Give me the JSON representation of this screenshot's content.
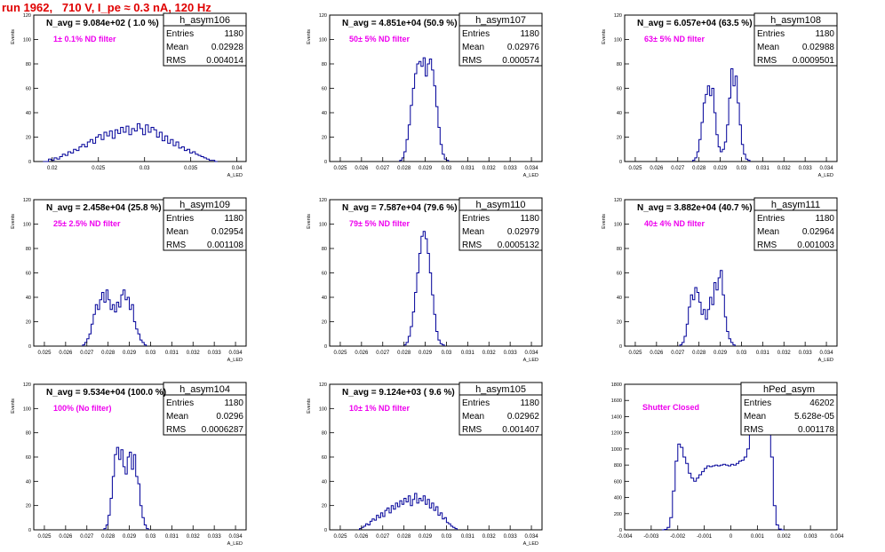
{
  "page_title": "run 1962,   710 V, I_pe ≈ 0.3 nA, 120 Hz",
  "colors": {
    "histogram": "#000099",
    "title_text": "#e00000",
    "annotation": "#ee00ee",
    "axis": "#000000"
  },
  "chart_data": [
    {
      "type": "histogram",
      "name": "h_asym106",
      "navg": "N_avg = 9.084e+02 ( 1.0 %)",
      "annotation": "1± 0.1% ND filter",
      "stats": {
        "entries": "1180",
        "mean": "0.02928",
        "rms": "0.004014"
      },
      "ylabel": "Events",
      "xlabel": "A_LED",
      "xlim": [
        0.018,
        0.041
      ],
      "ylim": [
        0,
        120
      ],
      "xticks": [
        0.02,
        0.025,
        0.03,
        0.035,
        0.04
      ],
      "xticklabels": [
        "0.02",
        "0.025",
        "0.03",
        "0.035",
        "0.04"
      ],
      "yticks": [
        0,
        20,
        40,
        60,
        80,
        100,
        120
      ],
      "yticklabels": [
        "0",
        "20",
        "40",
        "60",
        "80",
        "100",
        "120"
      ],
      "bin_width": 0.0003,
      "bin_start": 0.019,
      "values": [
        0,
        0,
        2,
        1,
        3,
        2,
        4,
        6,
        5,
        8,
        7,
        10,
        9,
        12,
        14,
        12,
        16,
        18,
        15,
        20,
        22,
        18,
        24,
        21,
        25,
        19,
        26,
        23,
        28,
        24,
        29,
        22,
        27,
        25,
        31,
        27,
        22,
        30,
        24,
        28,
        26,
        20,
        24,
        17,
        21,
        15,
        18,
        13,
        16,
        11,
        12,
        9,
        10,
        7,
        8,
        6,
        5,
        4,
        3,
        2,
        1,
        1,
        0
      ]
    },
    {
      "type": "histogram",
      "name": "h_asym107",
      "navg": "N_avg = 4.851e+04 (50.9 %)",
      "annotation": "50± 5% ND filter",
      "stats": {
        "entries": "1180",
        "mean": "0.02976",
        "rms": "0.000574"
      },
      "ylabel": "Events",
      "xlabel": "A_LED",
      "xlim": [
        0.0245,
        0.0345
      ],
      "ylim": [
        0,
        120
      ],
      "xticks": [
        0.025,
        0.026,
        0.027,
        0.028,
        0.029,
        0.03,
        0.031,
        0.032,
        0.033,
        0.034
      ],
      "xticklabels": [
        "0.025",
        "0.026",
        "0.027",
        "0.028",
        "0.029",
        "0.03",
        "0.031",
        "0.032",
        "0.033",
        "0.034"
      ],
      "yticks": [
        0,
        20,
        40,
        60,
        80,
        100,
        120
      ],
      "yticklabels": [
        "0",
        "20",
        "40",
        "60",
        "80",
        "100",
        "120"
      ],
      "bin_width": 0.0001,
      "bin_start": 0.0278,
      "values": [
        1,
        3,
        8,
        18,
        30,
        46,
        60,
        72,
        80,
        82,
        78,
        85,
        70,
        80,
        84,
        75,
        62,
        45,
        28,
        14,
        6,
        2,
        1
      ]
    },
    {
      "type": "histogram",
      "name": "h_asym108",
      "navg": "N_avg = 6.057e+04 (63.5 %)",
      "annotation": "63± 5% ND filter",
      "stats": {
        "entries": "1180",
        "mean": "0.02988",
        "rms": "0.0009501"
      },
      "ylabel": "Events",
      "xlabel": "A_LED",
      "xlim": [
        0.0245,
        0.0345
      ],
      "ylim": [
        0,
        120
      ],
      "xticks": [
        0.025,
        0.026,
        0.027,
        0.028,
        0.029,
        0.03,
        0.031,
        0.032,
        0.033,
        0.034
      ],
      "xticklabels": [
        "0.025",
        "0.026",
        "0.027",
        "0.028",
        "0.029",
        "0.03",
        "0.031",
        "0.032",
        "0.033",
        "0.034"
      ],
      "yticks": [
        0,
        20,
        40,
        60,
        80,
        100,
        120
      ],
      "yticklabels": [
        "0",
        "20",
        "40",
        "60",
        "80",
        "100",
        "120"
      ],
      "bin_width": 0.0001,
      "bin_start": 0.0277,
      "values": [
        1,
        3,
        8,
        18,
        32,
        48,
        55,
        62,
        54,
        60,
        40,
        22,
        12,
        8,
        10,
        16,
        30,
        52,
        76,
        62,
        70,
        48,
        30,
        14,
        6,
        2,
        1
      ]
    },
    {
      "type": "histogram",
      "name": "h_asym109",
      "navg": "N_avg = 2.458e+04 (25.8 %)",
      "annotation": "25± 2.5% ND filter",
      "stats": {
        "entries": "1180",
        "mean": "0.02954",
        "rms": "0.001108"
      },
      "ylabel": "Events",
      "xlabel": "A_LED",
      "xlim": [
        0.0245,
        0.0345
      ],
      "ylim": [
        0,
        120
      ],
      "xticks": [
        0.025,
        0.026,
        0.027,
        0.028,
        0.029,
        0.03,
        0.031,
        0.032,
        0.033,
        0.034
      ],
      "xticklabels": [
        "0.025",
        "0.026",
        "0.027",
        "0.028",
        "0.029",
        "0.03",
        "0.031",
        "0.032",
        "0.033",
        "0.034"
      ],
      "yticks": [
        0,
        20,
        40,
        60,
        80,
        100,
        120
      ],
      "yticklabels": [
        "0",
        "20",
        "40",
        "60",
        "80",
        "100",
        "120"
      ],
      "bin_width": 0.0001,
      "bin_start": 0.0268,
      "values": [
        1,
        3,
        6,
        10,
        18,
        26,
        34,
        30,
        38,
        44,
        36,
        46,
        38,
        30,
        34,
        28,
        36,
        32,
        42,
        46,
        38,
        40,
        30,
        34,
        20,
        14,
        10,
        5,
        3,
        1
      ]
    },
    {
      "type": "histogram",
      "name": "h_asym110",
      "navg": "N_avg = 7.587e+04 (79.6 %)",
      "annotation": "79± 5% ND filter",
      "stats": {
        "entries": "1180",
        "mean": "0.02979",
        "rms": "0.0005132"
      },
      "ylabel": "Events",
      "xlabel": "A_LED",
      "xlim": [
        0.0245,
        0.0345
      ],
      "ylim": [
        0,
        120
      ],
      "xticks": [
        0.025,
        0.026,
        0.027,
        0.028,
        0.029,
        0.03,
        0.031,
        0.032,
        0.033,
        0.034
      ],
      "xticklabels": [
        "0.025",
        "0.026",
        "0.027",
        "0.028",
        "0.029",
        "0.03",
        "0.031",
        "0.032",
        "0.033",
        "0.034"
      ],
      "yticks": [
        0,
        20,
        40,
        60,
        80,
        100,
        120
      ],
      "yticklabels": [
        "0",
        "20",
        "40",
        "60",
        "80",
        "100",
        "120"
      ],
      "bin_width": 0.0001,
      "bin_start": 0.028,
      "values": [
        1,
        3,
        8,
        16,
        28,
        44,
        60,
        76,
        90,
        94,
        88,
        76,
        60,
        42,
        26,
        12,
        5,
        2,
        1
      ]
    },
    {
      "type": "histogram",
      "name": "h_asym111",
      "navg": "N_avg = 3.882e+04 (40.7 %)",
      "annotation": "40± 4% ND filter",
      "stats": {
        "entries": "1180",
        "mean": "0.02964",
        "rms": "0.001003"
      },
      "ylabel": "Events",
      "xlabel": "A_LED",
      "xlim": [
        0.0245,
        0.0345
      ],
      "ylim": [
        0,
        120
      ],
      "xticks": [
        0.025,
        0.026,
        0.027,
        0.028,
        0.029,
        0.03,
        0.031,
        0.032,
        0.033,
        0.034
      ],
      "xticklabels": [
        "0.025",
        "0.026",
        "0.027",
        "0.028",
        "0.029",
        "0.03",
        "0.031",
        "0.032",
        "0.033",
        "0.034"
      ],
      "yticks": [
        0,
        20,
        40,
        60,
        80,
        100,
        120
      ],
      "yticklabels": [
        "0",
        "20",
        "40",
        "60",
        "80",
        "100",
        "120"
      ],
      "bin_width": 0.0001,
      "bin_start": 0.0271,
      "values": [
        1,
        3,
        8,
        18,
        32,
        42,
        38,
        48,
        44,
        36,
        26,
        30,
        22,
        30,
        40,
        34,
        52,
        46,
        56,
        62,
        42,
        24,
        12,
        6,
        3,
        1
      ]
    },
    {
      "type": "histogram",
      "name": "h_asym104",
      "navg": "N_avg = 9.534e+04 (100.0 %)",
      "annotation": "100% (No filter)",
      "stats": {
        "entries": "1180",
        "mean": "0.0296",
        "rms": "0.0006287"
      },
      "ylabel": "Events",
      "xlabel": "A_LED",
      "xlim": [
        0.0245,
        0.0345
      ],
      "ylim": [
        0,
        120
      ],
      "xticks": [
        0.025,
        0.026,
        0.027,
        0.028,
        0.029,
        0.03,
        0.031,
        0.032,
        0.033,
        0.034
      ],
      "xticklabels": [
        "0.025",
        "0.026",
        "0.027",
        "0.028",
        "0.029",
        "0.03",
        "0.031",
        "0.032",
        "0.033",
        "0.034"
      ],
      "yticks": [
        0,
        20,
        40,
        60,
        80,
        100,
        120
      ],
      "yticklabels": [
        "0",
        "20",
        "40",
        "60",
        "80",
        "100",
        "120"
      ],
      "bin_width": 0.0001,
      "bin_start": 0.0278,
      "values": [
        1,
        4,
        12,
        26,
        44,
        62,
        68,
        58,
        66,
        52,
        46,
        60,
        64,
        50,
        62,
        44,
        38,
        20,
        10,
        4,
        1
      ]
    },
    {
      "type": "histogram",
      "name": "h_asym105",
      "navg": "N_avg = 9.124e+03 ( 9.6 %)",
      "annotation": "10± 1% ND filter",
      "stats": {
        "entries": "1180",
        "mean": "0.02962",
        "rms": "0.001407"
      },
      "ylabel": "Events",
      "xlabel": "A_LED",
      "xlim": [
        0.0245,
        0.0345
      ],
      "ylim": [
        0,
        120
      ],
      "xticks": [
        0.025,
        0.026,
        0.027,
        0.028,
        0.029,
        0.03,
        0.031,
        0.032,
        0.033,
        0.034
      ],
      "xticklabels": [
        "0.025",
        "0.026",
        "0.027",
        "0.028",
        "0.029",
        "0.03",
        "0.031",
        "0.032",
        "0.033",
        "0.034"
      ],
      "yticks": [
        0,
        20,
        40,
        60,
        80,
        100,
        120
      ],
      "yticklabels": [
        "0",
        "20",
        "40",
        "60",
        "80",
        "100",
        "120"
      ],
      "bin_width": 0.0001,
      "bin_start": 0.0259,
      "values": [
        1,
        2,
        3,
        5,
        4,
        7,
        9,
        8,
        12,
        10,
        14,
        11,
        16,
        18,
        14,
        20,
        17,
        22,
        19,
        24,
        21,
        26,
        23,
        28,
        20,
        25,
        30,
        22,
        26,
        24,
        28,
        21,
        25,
        18,
        22,
        16,
        19,
        12,
        14,
        9,
        10,
        6,
        5,
        3,
        2,
        1
      ]
    },
    {
      "type": "histogram",
      "name": "hPed_asym",
      "annotation": "Shutter Closed",
      "stats": {
        "entries": "46202",
        "mean": "5.628e-05",
        "rms": "0.001178"
      },
      "ylabel": "",
      "xlabel": "",
      "xlim": [
        -0.004,
        0.004
      ],
      "ylim": [
        0,
        1800
      ],
      "xticks": [
        -0.004,
        -0.003,
        -0.002,
        -0.001,
        0,
        0.001,
        0.002,
        0.003,
        0.004
      ],
      "xticklabels": [
        "-0.004",
        "-0.003",
        "-0.002",
        "-0.001",
        "0",
        "0.001",
        "0.002",
        "0.003",
        "0.004"
      ],
      "yticks": [
        0,
        200,
        400,
        600,
        800,
        1000,
        1200,
        1400,
        1600,
        1800
      ],
      "yticklabels": [
        "0",
        "200",
        "400",
        "600",
        "800",
        "1000",
        "1200",
        "1400",
        "1600",
        "1800"
      ],
      "bin_width": 0.0001,
      "bin_start": -0.0026,
      "values": [
        0,
        5,
        30,
        150,
        480,
        850,
        1060,
        1020,
        900,
        820,
        700,
        640,
        600,
        640,
        680,
        720,
        760,
        790,
        780,
        790,
        800,
        790,
        800,
        810,
        800,
        790,
        810,
        800,
        820,
        850,
        860,
        900,
        1000,
        1200,
        1400,
        1500,
        1600,
        1650,
        1700,
        1750,
        1400,
        900,
        300,
        60,
        10,
        0
      ]
    }
  ]
}
